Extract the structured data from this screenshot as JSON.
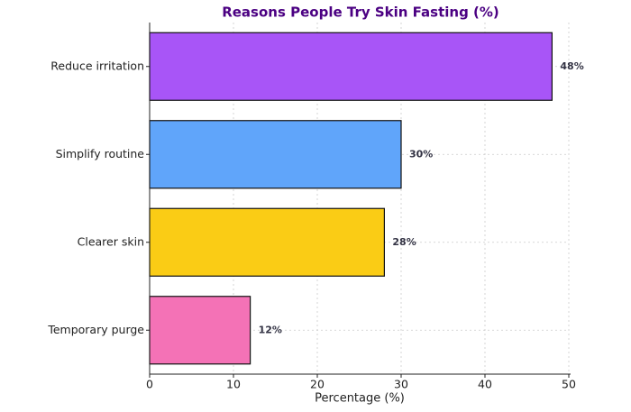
{
  "chart_data": {
    "type": "barh",
    "title": "Reasons People Try Skin Fasting (%)",
    "xlabel": "Percentage (%)",
    "categories": [
      "Reduce irritation",
      "Simplify routine",
      "Clearer skin",
      "Temporary purge"
    ],
    "values": [
      48,
      30,
      28,
      12
    ],
    "value_labels": [
      "48%",
      "30%",
      "28%",
      "12%"
    ],
    "colors": [
      "#a855f7",
      "#60a5fa",
      "#facc15",
      "#f472b6"
    ],
    "xlim": [
      0,
      50
    ],
    "xticks": [
      0,
      10,
      20,
      30,
      40,
      50
    ],
    "grid": true
  }
}
